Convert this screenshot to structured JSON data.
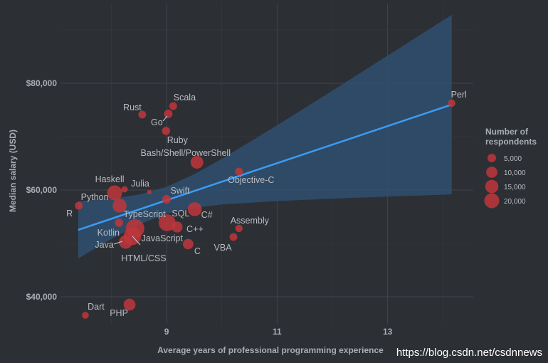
{
  "chart_data": {
    "type": "scatter",
    "xlabel": "Average years of professional programming experience",
    "ylabel": "Median salary (USD)",
    "xlim": [
      7.08,
      14.55
    ],
    "ylim": [
      34930,
      94930
    ],
    "x_ticks": [
      9,
      11,
      13
    ],
    "x_tick_labels": [
      "9",
      "11",
      "13"
    ],
    "y_ticks": [
      40000,
      60000,
      80000
    ],
    "y_tick_labels": [
      "$40,000",
      "$60,000",
      "$80,000"
    ],
    "grid": true,
    "point_color": "#c0363c",
    "line_color": "#3a9cf5",
    "band_color": "#2f4f70",
    "points": [
      {
        "label": "Rust",
        "x": 8.56,
        "y": 74130,
        "n": 3000
      },
      {
        "label": "Scala",
        "x": 9.12,
        "y": 75730,
        "n": 3000
      },
      {
        "label": "Go",
        "x": 9.03,
        "y": 74270,
        "n": 4000
      },
      {
        "label": "Ruby",
        "x": 8.99,
        "y": 71070,
        "n": 3500
      },
      {
        "label": "Bash/Shell/PowerShell",
        "x": 9.55,
        "y": 65200,
        "n": 12000
      },
      {
        "label": "Objective-C",
        "x": 10.31,
        "y": 63470,
        "n": 3000
      },
      {
        "label": "Perl",
        "x": 14.16,
        "y": 76270,
        "n": 2500
      },
      {
        "label": "Python",
        "x": 8.06,
        "y": 59470,
        "n": 18000
      },
      {
        "label": "Haskell",
        "x": 8.24,
        "y": 60130,
        "n": 1500
      },
      {
        "label": "Julia",
        "x": 8.69,
        "y": 59600,
        "n": 300
      },
      {
        "label": "R",
        "x": 7.41,
        "y": 57070,
        "n": 3000
      },
      {
        "label": "TypeScript",
        "x": 8.15,
        "y": 57070,
        "n": 15000
      },
      {
        "label": "Swift",
        "x": 9.0,
        "y": 58270,
        "n": 4000
      },
      {
        "label": "C#",
        "x": 9.51,
        "y": 56400,
        "n": 15000
      },
      {
        "label": "Kotlin",
        "x": 8.14,
        "y": 53870,
        "n": 3500
      },
      {
        "label": "JavaScript",
        "x": 8.43,
        "y": 52800,
        "n": 30000
      },
      {
        "label": "HTML/CSS",
        "x": 8.38,
        "y": 51330,
        "n": 26000
      },
      {
        "label": "Java",
        "x": 8.26,
        "y": 50270,
        "n": 14000
      },
      {
        "label": "SQL",
        "x": 9.01,
        "y": 53870,
        "n": 24000
      },
      {
        "label": "C++",
        "x": 9.19,
        "y": 53070,
        "n": 8000
      },
      {
        "label": "C",
        "x": 9.39,
        "y": 49870,
        "n": 7000
      },
      {
        "label": "VBA",
        "x": 10.21,
        "y": 51200,
        "n": 3000
      },
      {
        "label": "Assembly",
        "x": 10.31,
        "y": 52800,
        "n": 2500
      },
      {
        "label": "Dart",
        "x": 7.53,
        "y": 36530,
        "n": 2000
      },
      {
        "label": "PHP",
        "x": 8.33,
        "y": 38530,
        "n": 10000
      }
    ],
    "trend_line": {
      "x": [
        7.4,
        14.16
      ],
      "y": [
        52530,
        76000
      ]
    },
    "confidence_band": [
      [
        7.4,
        47170,
        57890
      ],
      [
        8,
        50825,
        58401
      ],
      [
        8.5,
        53547,
        59151
      ],
      [
        9,
        55565,
        60605
      ],
      [
        9.5,
        56683,
        62959
      ],
      [
        10,
        57273,
        65841
      ],
      [
        11,
        57933,
        72125
      ],
      [
        12,
        58384,
        78618
      ],
      [
        13,
        58769,
        85177
      ],
      [
        14.16,
        59179,
        92821
      ]
    ],
    "legend": {
      "title": [
        "Number of",
        "respondents"
      ],
      "placement": "right",
      "entries": [
        {
          "label": "5,000",
          "n": 5000
        },
        {
          "label": "10,000",
          "n": 10000
        },
        {
          "label": "15,000",
          "n": 15000
        },
        {
          "label": "20,000",
          "n": 20000
        }
      ]
    }
  },
  "watermark": "https://blog.csdn.net/csdnnews"
}
